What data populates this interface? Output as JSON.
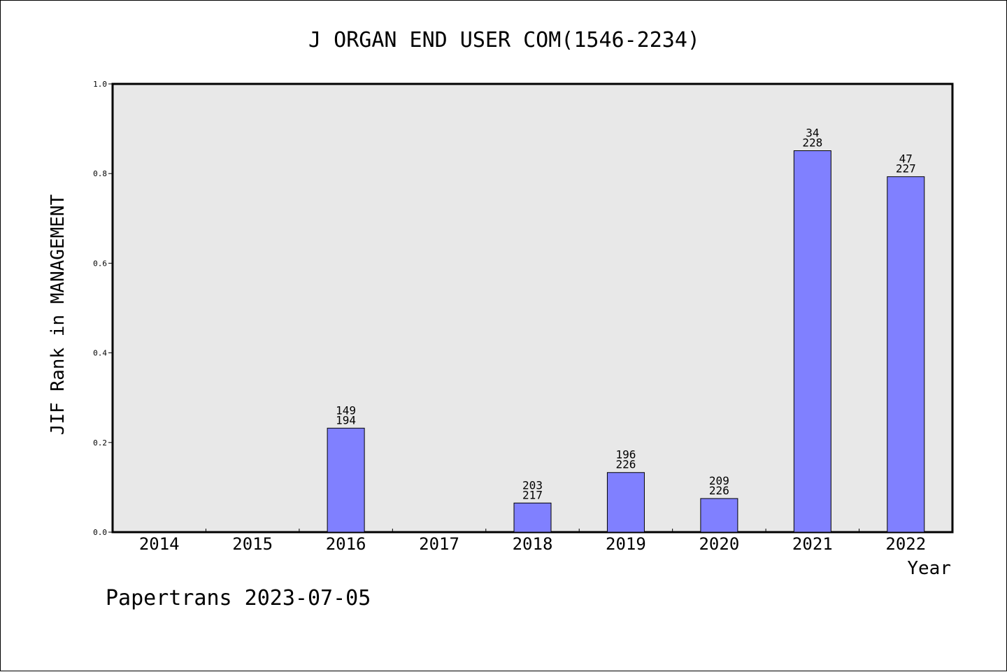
{
  "chart_data": {
    "type": "bar",
    "title": "J ORGAN END USER COM(1546-2234)",
    "xlabel": "Year",
    "ylabel": "JIF Rank in MANAGEMENT",
    "ylim": [
      0,
      1.0
    ],
    "yticks": [
      "0.0",
      "0.2",
      "0.4",
      "0.6",
      "0.8",
      "1.0"
    ],
    "ytick_values": [
      0,
      0.2,
      0.4,
      0.6,
      0.8,
      1.0
    ],
    "grid": false,
    "categories": [
      "2014",
      "2015",
      "2016",
      "2017",
      "2018",
      "2019",
      "2020",
      "2021",
      "2022"
    ],
    "values": [
      null,
      null,
      0.232,
      null,
      0.065,
      0.133,
      0.075,
      0.851,
      0.793
    ],
    "rank": [
      null,
      null,
      "149",
      null,
      "203",
      "196",
      "209",
      "34",
      "47"
    ],
    "total": [
      null,
      null,
      "194",
      null,
      "217",
      "226",
      "226",
      "228",
      "227"
    ],
    "colors": {
      "bar": "#8080ff",
      "plot_background": "#e8e8e8"
    }
  },
  "footer": {
    "text": "Papertrans 2023-07-05"
  }
}
